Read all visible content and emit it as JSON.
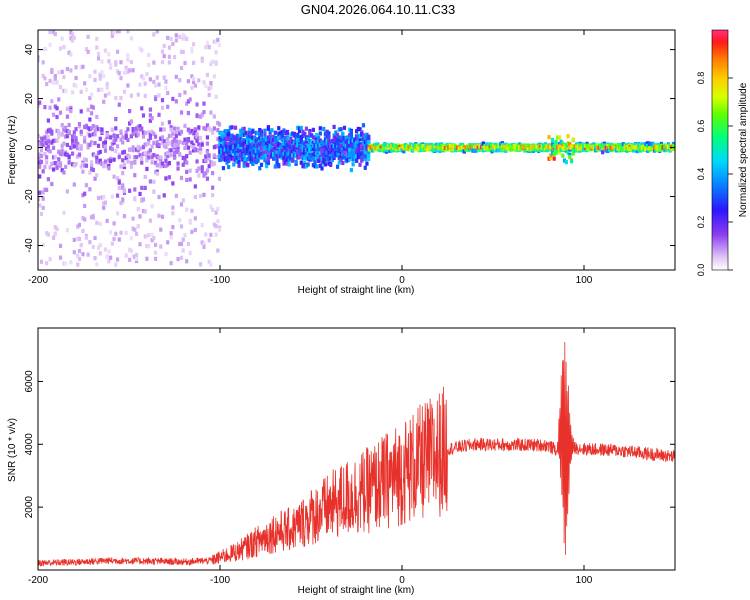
{
  "title": "GN04.2026.064.10.11.C33",
  "chart_data": [
    {
      "type": "heatmap",
      "title": "GN04.2026.064.10.11.C33",
      "xlabel": "Height of straight line (km)",
      "ylabel": "Frequency (Hz)",
      "xlim": [
        -200,
        150
      ],
      "ylim": [
        -50,
        48
      ],
      "x_ticks": [
        -200,
        -100,
        0,
        100
      ],
      "y_ticks": [
        -40,
        -20,
        0,
        20,
        40
      ],
      "colorbar": {
        "label": "Normalized spectral amplitude",
        "range": [
          0.0,
          1.0
        ],
        "ticks": [
          0.0,
          0.2,
          0.4,
          0.6,
          0.8
        ],
        "tick_labels": [
          "0.0",
          "0.2",
          "0.4",
          "0.6",
          "0.8"
        ]
      },
      "regions": [
        {
          "x_range": [
            -200,
            -100
          ],
          "freq_spread_hz": 48,
          "amplitude": 0.12,
          "description": "scattered noise"
        },
        {
          "x_range": [
            -100,
            -18
          ],
          "freq_spread_hz": 10,
          "amplitude": 0.35,
          "description": "broadened signal"
        },
        {
          "x_range": [
            -18,
            150
          ],
          "freq_spread_hz": 2,
          "amplitude": 0.8,
          "description": "narrow coherent line near 0 Hz"
        }
      ]
    },
    {
      "type": "line",
      "xlabel": "Height of straight line (km)",
      "ylabel": "SNR (10 * v/v)",
      "xlim": [
        -200,
        150
      ],
      "ylim": [
        0,
        7700
      ],
      "x_ticks": [
        -200,
        -100,
        0,
        100
      ],
      "y_ticks": [
        2000,
        4000,
        6000
      ],
      "color": "#e8312a",
      "series": [
        {
          "name": "SNR",
          "x": [
            -200,
            -180,
            -160,
            -140,
            -120,
            -105,
            -90,
            -80,
            -70,
            -60,
            -50,
            -40,
            -30,
            -20,
            -10,
            0,
            10,
            20,
            25,
            40,
            60,
            80,
            85,
            88,
            90,
            92,
            95,
            100,
            120,
            150
          ],
          "y": [
            220,
            250,
            300,
            280,
            260,
            300,
            600,
            900,
            1200,
            1300,
            1700,
            2000,
            2300,
            2500,
            2800,
            3100,
            3400,
            3700,
            3850,
            4000,
            3980,
            3970,
            3800,
            4500,
            3600,
            4000,
            3900,
            3850,
            3800,
            3600
          ]
        }
      ]
    }
  ]
}
